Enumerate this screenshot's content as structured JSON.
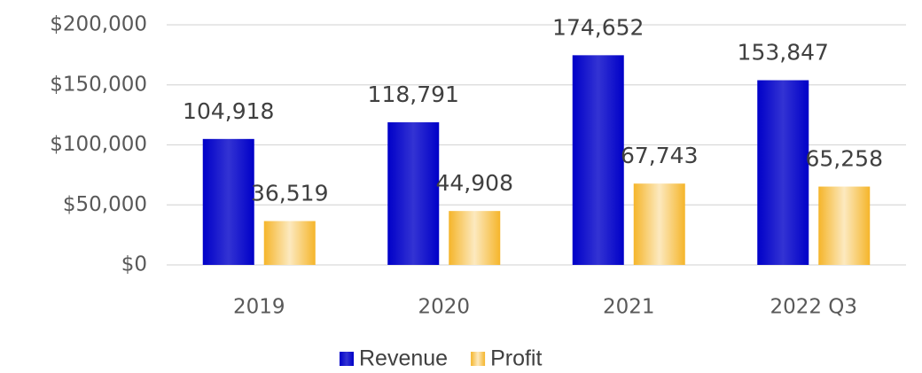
{
  "chart_data": {
    "type": "bar",
    "categories": [
      "2019",
      "2020",
      "2021",
      "2022 Q3"
    ],
    "series": [
      {
        "name": "Revenue",
        "color": "#0000c8",
        "values": [
          104918,
          118791,
          174652,
          153847
        ],
        "value_labels": [
          "104,918",
          "118,791",
          "174,652",
          "153,847"
        ]
      },
      {
        "name": "Profit",
        "color": "#f5b52a",
        "values": [
          36519,
          44908,
          67743,
          65258
        ],
        "value_labels": [
          "36,519",
          "44,908",
          "67,743",
          "65,258"
        ]
      }
    ],
    "ylim": [
      0,
      200000
    ],
    "yticks": [
      {
        "value": 0,
        "label": "$0"
      },
      {
        "value": 50000,
        "label": "$50,000"
      },
      {
        "value": 100000,
        "label": "$100,000"
      },
      {
        "value": 150000,
        "label": "$150,000"
      },
      {
        "value": 200000,
        "label": "$200,000"
      }
    ],
    "grid": true,
    "legend": "bottom"
  }
}
